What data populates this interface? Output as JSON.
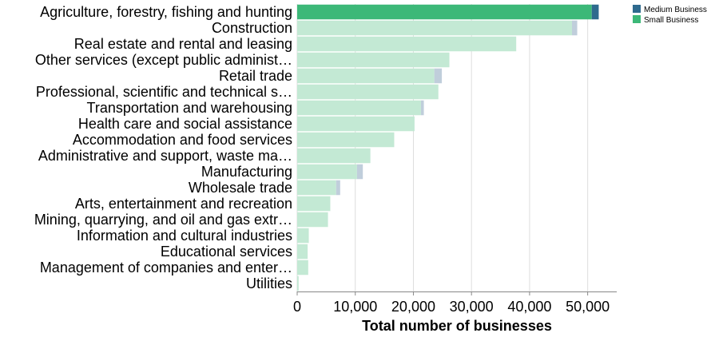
{
  "chart_data": {
    "type": "bar",
    "orientation": "horizontal",
    "stacked": true,
    "xlabel": "Total number of businesses",
    "xlim": [
      0,
      55000
    ],
    "xticks": [
      0,
      10000,
      20000,
      30000,
      40000,
      50000
    ],
    "xtick_labels": [
      "0",
      "10,000",
      "20,000",
      "30,000",
      "40,000",
      "50,000"
    ],
    "grid": true,
    "legend_position": "top-right",
    "categories": [
      "Agriculture, forestry, fishing and hunting",
      "Construction",
      "Real estate and rental and leasing",
      "Other services (except public administ…",
      "Retail trade",
      "Professional, scientific and technical s…",
      "Transportation and warehousing",
      "Health care and social assistance",
      "Accommodation and food services",
      "Administrative and support, waste ma…",
      "Manufacturing",
      "Wholesale trade",
      "Arts, entertainment and recreation",
      "Mining, quarrying, and oil and gas extr…",
      "Information and cultural industries",
      "Educational services",
      "Management of companies and enter…",
      "Utilities"
    ],
    "highlighted_category": "Agriculture, forestry, fishing and hunting",
    "series": [
      {
        "name": "Small Business",
        "color": "#3cb878",
        "muted_color": "#c3e9d4",
        "values": [
          50700,
          47300,
          37700,
          26200,
          23600,
          24300,
          21300,
          20200,
          16700,
          12600,
          10300,
          6700,
          5700,
          5300,
          2000,
          1800,
          1900,
          250
        ]
      },
      {
        "name": "Medium Business",
        "color": "#2e6a8e",
        "muted_color": "#c0cedb",
        "values": [
          1200,
          900,
          0,
          0,
          1300,
          0,
          500,
          0,
          0,
          0,
          1000,
          700,
          0,
          0,
          0,
          0,
          0,
          0
        ]
      }
    ],
    "legend_order": [
      "Medium Business",
      "Small Business"
    ]
  }
}
